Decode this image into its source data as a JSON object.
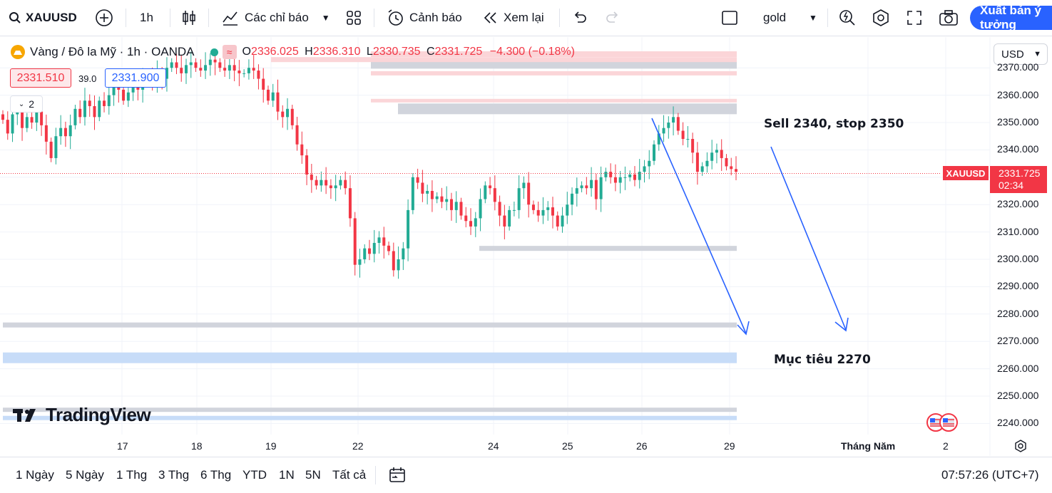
{
  "toolbar": {
    "symbol": "XAUUSD",
    "interval": "1h",
    "indicators_label": "Các chỉ báo",
    "alerts_label": "Cảnh báo",
    "replay_label": "Xem lại",
    "layout_name": "gold",
    "publish_label": "Xuất bản ý tưởng"
  },
  "legend": {
    "title": "Vàng / Đô la Mỹ · 1h · OANDA",
    "open_key": "O",
    "open": "2336.025",
    "high_key": "H",
    "high": "2336.310",
    "low_key": "L",
    "low": "2330.735",
    "close_key": "C",
    "close": "2331.725",
    "change": "−4.300 (−0.18%)",
    "sell_price": "2331.510",
    "spread": "39.0",
    "buy_price": "2331.900",
    "collapse_count": "2"
  },
  "currency": "USD",
  "price_axis": [
    "2370.000",
    "2360.000",
    "2350.000",
    "2340.000",
    "2330.000",
    "2320.000",
    "2310.000",
    "2300.000",
    "2290.000",
    "2280.000",
    "2270.000",
    "2260.000",
    "2250.000",
    "2240.000"
  ],
  "current_price": {
    "symbol": "XAUUSD",
    "price": "2331.725",
    "countdown": "02:34"
  },
  "time_axis": [
    "17",
    "18",
    "19",
    "22",
    "24",
    "25",
    "26",
    "29",
    "Tháng Năm",
    "2"
  ],
  "annotations": {
    "sell": "Sell 2340, stop 2350",
    "target": "Mục tiêu 2270"
  },
  "branding": "TradingView",
  "ranges": [
    "1 Ngày",
    "5 Ngày",
    "1 Thg",
    "3 Thg",
    "6 Thg",
    "YTD",
    "1N",
    "5N",
    "Tất cả"
  ],
  "clock": "07:57:26 (UTC+7)",
  "colors": {
    "up": "#22ab94",
    "down": "#f23645",
    "accent": "#2962ff"
  },
  "chart_data": {
    "type": "candlestick",
    "title": "Vàng / Đô la Mỹ · 1h · OANDA",
    "ylim": [
      2237,
      2375
    ],
    "x": [
      "17",
      "18",
      "19",
      "22",
      "24",
      "25",
      "26",
      "29"
    ],
    "close_series": [
      2351,
      2346,
      2353,
      2356,
      2348,
      2352,
      2350,
      2354,
      2349,
      2343,
      2337,
      2345,
      2348,
      2345,
      2349,
      2355,
      2352,
      2358,
      2356,
      2352,
      2358,
      2356,
      2360,
      2364,
      2362,
      2358,
      2361,
      2364,
      2362,
      2366,
      2367,
      2364,
      2368,
      2366,
      2370,
      2372,
      2370,
      2368,
      2371,
      2372,
      2370,
      2369,
      2371,
      2373,
      2372,
      2370,
      2369,
      2371,
      2369,
      2368,
      2368,
      2370,
      2369,
      2366,
      2362,
      2358,
      2361,
      2354,
      2352,
      2355,
      2349,
      2342,
      2338,
      2331,
      2329,
      2327,
      2329,
      2327,
      2326,
      2327,
      2329,
      2326,
      2315,
      2298,
      2300,
      2304,
      2302,
      2306,
      2308,
      2305,
      2303,
      2296,
      2300,
      2304,
      2318,
      2330,
      2328,
      2324,
      2325,
      2322,
      2323,
      2321,
      2322,
      2318,
      2321,
      2316,
      2314,
      2312,
      2315,
      2322,
      2327,
      2326,
      2321,
      2316,
      2312,
      2318,
      2318,
      2326,
      2328,
      2320,
      2318,
      2316,
      2318,
      2319,
      2316,
      2312,
      2316,
      2320,
      2324,
      2326,
      2327,
      2326,
      2329,
      2322,
      2330,
      2332,
      2330,
      2328,
      2330,
      2330,
      2331,
      2329,
      2332,
      2334,
      2336,
      2342,
      2346,
      2348,
      2350,
      2352,
      2347,
      2344,
      2344,
      2339,
      2332,
      2334,
      2336,
      2339,
      2340,
      2337,
      2334,
      2333,
      2332
    ],
    "horizontal_levels": [
      2375,
      2371,
      2373,
      2368,
      2358,
      2355,
      2304,
      2276,
      2264,
      2245,
      2242
    ],
    "annotation_texts": [
      "Sell 2340, stop 2350",
      "Mục tiêu 2270"
    ]
  }
}
